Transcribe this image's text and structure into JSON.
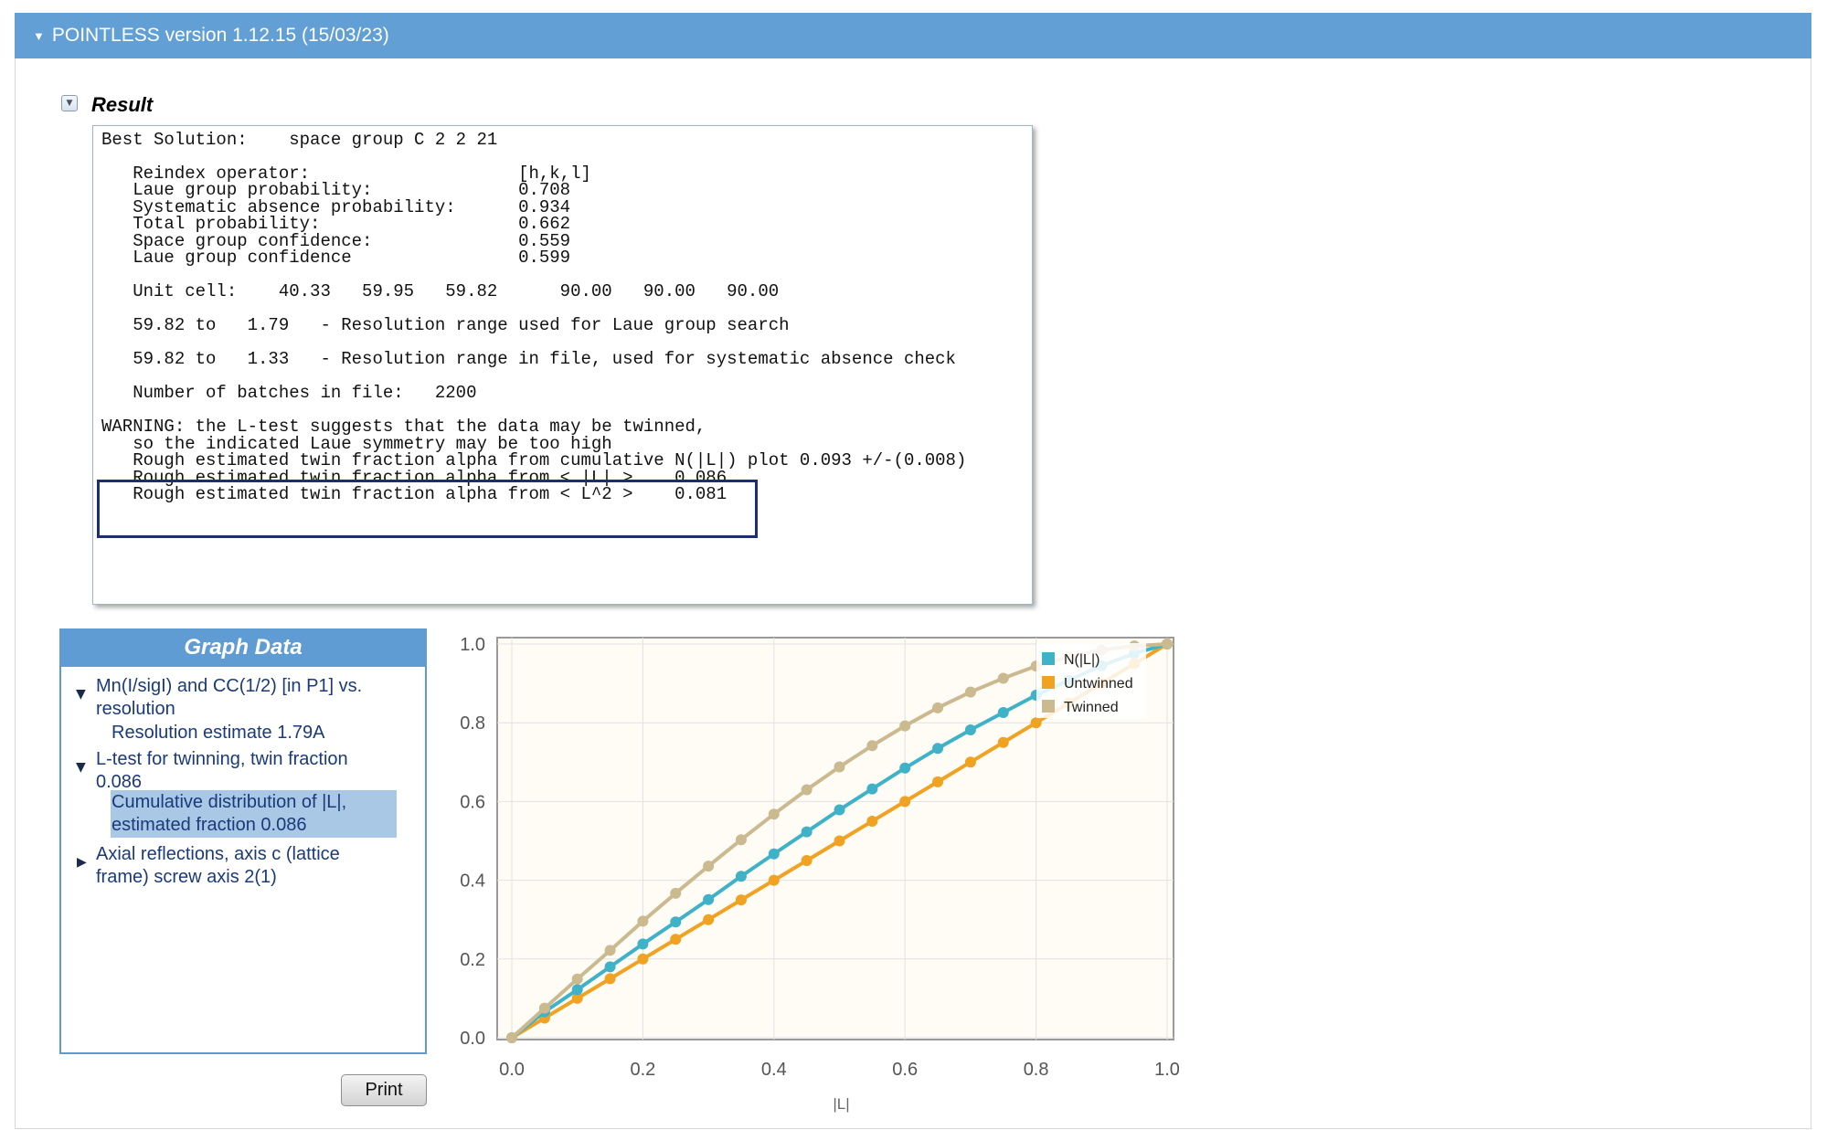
{
  "header": {
    "title": "POINTLESS version 1.12.15 (15/03/23)"
  },
  "result": {
    "label": "Result",
    "lines": [
      "Best Solution:    space group C 2 2 21",
      "",
      "   Reindex operator:                    [h,k,l]",
      "   Laue group probability:              0.708",
      "   Systematic absence probability:      0.934",
      "   Total probability:                   0.662",
      "   Space group confidence:              0.559",
      "   Laue group confidence                0.599",
      "",
      "   Unit cell:    40.33   59.95   59.82      90.00   90.00   90.00",
      "",
      "   59.82 to   1.79   - Resolution range used for Laue group search",
      "",
      "   59.82 to   1.33   - Resolution range in file, used for systematic absence check",
      "",
      "   Number of batches in file:   2200",
      "",
      "WARNING: the L-test suggests that the data may be twinned,",
      "   so the indicated Laue symmetry may be too high",
      "   Rough estimated twin fraction alpha from cumulative N(|L|) plot 0.093 +/-(0.008)",
      "   Rough estimated twin fraction alpha from < |L| >    0.086",
      "   Rough estimated twin fraction alpha from < L^2 >    0.081"
    ]
  },
  "graph_data": {
    "title": "Graph Data",
    "items": [
      {
        "label_lines": [
          "Mn(I/sigI) and CC(1/2) [in P1] vs.",
          "resolution"
        ],
        "expanded": true,
        "children": [
          {
            "label_lines": [
              "Resolution estimate 1.79A"
            ],
            "selected": false
          }
        ]
      },
      {
        "label_lines": [
          "L-test for twinning, twin fraction",
          "0.086"
        ],
        "expanded": true,
        "children": [
          {
            "label_lines": [
              "Cumulative distribution of |L|,",
              "estimated fraction 0.086"
            ],
            "selected": true
          }
        ]
      },
      {
        "label_lines": [
          "Axial reflections, axis c (lattice",
          "frame) screw axis 2(1)"
        ],
        "expanded": false,
        "children": []
      }
    ],
    "print_label": "Print"
  },
  "chart_data": {
    "type": "line",
    "title": "",
    "xlabel": "|L|",
    "ylabel": "",
    "xlim": [
      0,
      1
    ],
    "ylim": [
      0,
      1
    ],
    "xticks": [
      "0.0",
      "0.2",
      "0.4",
      "0.6",
      "0.8",
      "1.0"
    ],
    "yticks": [
      "0.0",
      "0.2",
      "0.4",
      "0.6",
      "0.8",
      "1.0"
    ],
    "grid": true,
    "legend_position": "top-right",
    "x": [
      0,
      0.05,
      0.1,
      0.15,
      0.2,
      0.25,
      0.3,
      0.35,
      0.4,
      0.45,
      0.5,
      0.55,
      0.6,
      0.65,
      0.7,
      0.75,
      0.8,
      0.85,
      0.9,
      0.95,
      1.0
    ],
    "series": [
      {
        "name": "N(|L|)",
        "color": "#3fb2c8",
        "values": [
          0,
          0.066,
          0.122,
          0.18,
          0.238,
          0.294,
          0.351,
          0.41,
          0.467,
          0.523,
          0.579,
          0.632,
          0.685,
          0.735,
          0.782,
          0.826,
          0.87,
          0.908,
          0.945,
          0.976,
          1.0
        ]
      },
      {
        "name": "Untwinned",
        "color": "#f0a223",
        "values": [
          0,
          0.05,
          0.1,
          0.15,
          0.2,
          0.25,
          0.3,
          0.35,
          0.4,
          0.45,
          0.5,
          0.55,
          0.6,
          0.65,
          0.7,
          0.75,
          0.8,
          0.85,
          0.9,
          0.95,
          1.0
        ]
      },
      {
        "name": "Twinned",
        "color": "#cbb98f",
        "values": [
          0,
          0.075,
          0.149,
          0.222,
          0.296,
          0.367,
          0.436,
          0.503,
          0.568,
          0.63,
          0.688,
          0.742,
          0.792,
          0.838,
          0.878,
          0.913,
          0.944,
          0.967,
          0.985,
          0.995,
          1.0
        ]
      }
    ]
  }
}
